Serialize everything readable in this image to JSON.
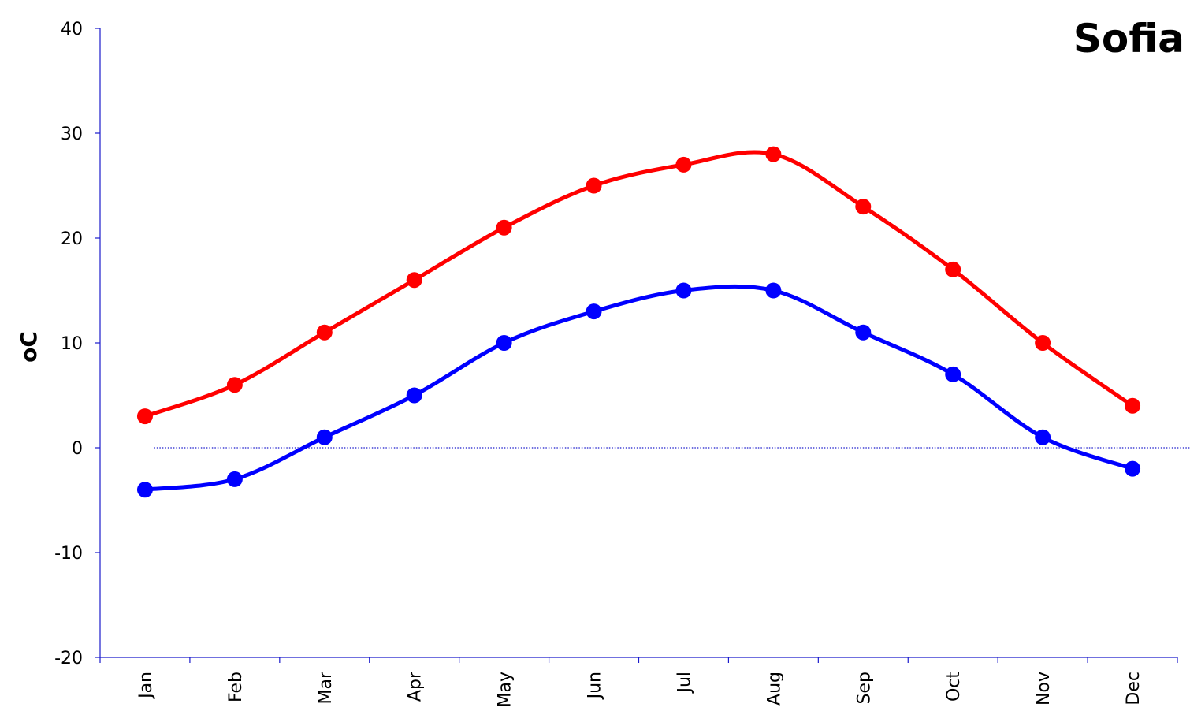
{
  "chart_data": {
    "type": "line",
    "title": "Sofia",
    "ylabel": "oC",
    "xlabel": "",
    "categories": [
      "Jan",
      "Feb",
      "Mar",
      "Apr",
      "May",
      "Jun",
      "Jul",
      "Aug",
      "Sep",
      "Oct",
      "Nov",
      "Dec"
    ],
    "ylim": [
      -20,
      40
    ],
    "yticks": [
      "40",
      "30",
      "20",
      "10",
      "0",
      "-10",
      "-20"
    ],
    "grid": false,
    "legend": "none",
    "series": [
      {
        "color": "#ff0000",
        "values": [
          3,
          6,
          11,
          16,
          21,
          25,
          27,
          28,
          23,
          17,
          10,
          4
        ]
      },
      {
        "color": "#0000ff",
        "values": [
          -4,
          -3,
          1,
          5,
          10,
          13,
          15,
          15,
          11,
          7,
          1,
          -2
        ]
      }
    ],
    "reference_line": {
      "y": 0,
      "style": "dotted"
    }
  }
}
